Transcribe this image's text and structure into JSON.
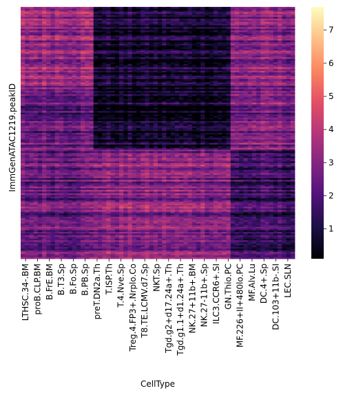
{
  "chart_data": {
    "type": "heatmap",
    "title": "",
    "xlabel": "CellType",
    "ylabel": "ImmGenATAC1219.peakID",
    "x_tick_labels": [
      "LTHSC.34-.BM",
      "proB.CLP.BM",
      "B.FrE.BM",
      "B.T3.Sp",
      "B.Fo.Sp",
      "B.PB.Sp",
      "preT.DN2a.Th",
      "T.ISP.Th",
      "T.4.Nve.Sp",
      "Treg.4.FP3+.Nrplo.Co",
      "T8.TE.LCMV.d7.Sp",
      "NKT.Sp",
      "Tgd.g2+d17.24a+.Th",
      "Tgd.g1.1+d1.24a+.Th",
      "NK.27+11b+.BM",
      "NK.27-11b+.Sp",
      "ILC3.CCR6+.SI",
      "GN.Thio.PC",
      "MF.226+II+480lo.PC",
      "MF.Alv.Lu",
      "DC.4+.Sp",
      "DC.103+11b-.SI",
      "LEC.SLN"
    ],
    "y_tick_labels": [],
    "colorbar": {
      "colormap": "magma",
      "range": [
        0.1,
        7.7
      ],
      "ticks": [
        "1",
        "2",
        "3",
        "4",
        "5",
        "6",
        "7"
      ]
    },
    "blocks": [
      {
        "cell_types": "LTHSC.34-.BM – B.PB.Sp",
        "rows": "upper third",
        "level": "medium-high (~3-4)"
      },
      {
        "cell_types": "LTHSC.34-.BM – B.PB.Sp",
        "rows": "lower two thirds",
        "level": "medium (~2-3)"
      },
      {
        "cell_types": "preT.DN2a.Th – ILC3.CCR6+.SI",
        "rows": "upper half",
        "level": "low (~0.5-1.5)"
      },
      {
        "cell_types": "preT.DN2a.Th – ILC3.CCR6+.SI",
        "rows": "lower half",
        "level": "medium-high (~3-3.5)"
      },
      {
        "cell_types": "GN.Thio.PC – LEC.SLN",
        "rows": "upper half",
        "level": "medium-high (~3-3.5)"
      },
      {
        "cell_types": "GN.Thio.PC – LEC.SLN",
        "rows": "lower half",
        "level": "low-medium (~1-2)"
      }
    ]
  }
}
